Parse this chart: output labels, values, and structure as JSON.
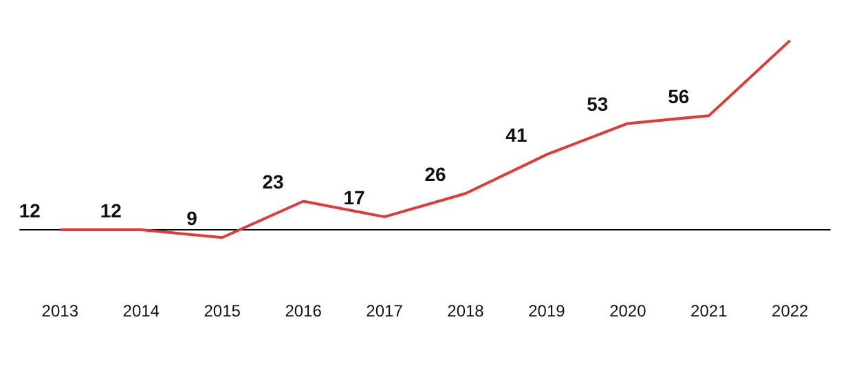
{
  "chart_data": {
    "type": "line",
    "categories": [
      "2013",
      "2014",
      "2015",
      "2016",
      "2017",
      "2018",
      "2019",
      "2020",
      "2021",
      "2022"
    ],
    "series": [
      {
        "color": "#e03a3a",
        "values": [
          12,
          12,
          9,
          23,
          17,
          26,
          41,
          53,
          56,
          85
        ],
        "value_labels": [
          "12",
          "12",
          "9",
          "23",
          "17",
          "26",
          "41",
          "53",
          "56",
          null
        ]
      }
    ],
    "tick_labels": "x",
    "grid": false,
    "legend": false,
    "marker": "none",
    "line_style": "solid",
    "ref_lines": [
      {
        "axis": "y",
        "value": 12,
        "color": "#000000"
      }
    ]
  }
}
